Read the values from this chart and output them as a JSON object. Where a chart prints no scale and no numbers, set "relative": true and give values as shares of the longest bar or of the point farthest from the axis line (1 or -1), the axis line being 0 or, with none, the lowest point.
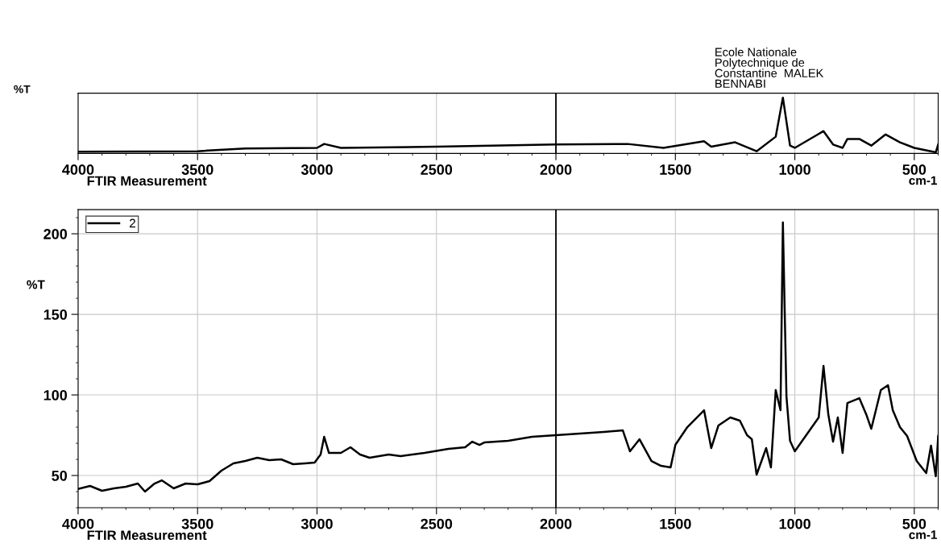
{
  "chart_data": [
    {
      "type": "line",
      "title": "Ecole Nationale\nPolytechnique de\nConstantine  MALEK\nBENNABI",
      "ylabel": "%T",
      "xlabel": "FTIR Measurement",
      "annotations": [
        "cm-1"
      ],
      "relative": true,
      "tick_labels": "x",
      "grid": "x",
      "xlim": [
        4000,
        400
      ],
      "xticks": [
        4000,
        3500,
        3000,
        2500,
        2000,
        1500,
        1000,
        500
      ],
      "ref_lines": [
        {
          "axis": "x",
          "value": 2000,
          "color": "#000000"
        }
      ],
      "series": [
        {
          "color": "#000000",
          "x": [
            4000,
            3500,
            3300,
            3000,
            2970,
            2900,
            2500,
            2000,
            1700,
            1550,
            1380,
            1350,
            1250,
            1160,
            1080,
            1050,
            1020,
            1000,
            880,
            840,
            800,
            780,
            730,
            680,
            620,
            560,
            500,
            410,
            400
          ],
          "values": [
            0.03,
            0.04,
            0.09,
            0.1,
            0.17,
            0.1,
            0.12,
            0.16,
            0.17,
            0.1,
            0.22,
            0.12,
            0.2,
            0.04,
            0.3,
            1,
            0.14,
            0.1,
            0.4,
            0.16,
            0.1,
            0.26,
            0.26,
            0.14,
            0.34,
            0.2,
            0.1,
            0.02,
            0.16
          ]
        }
      ]
    },
    {
      "type": "line",
      "ylabel": "%T",
      "xlabel": "FTIR Measurement",
      "annotations": [
        "cm-1"
      ],
      "grid": true,
      "legend": "top left",
      "xlim": [
        4000,
        400
      ],
      "xticks": [
        4000,
        3500,
        3000,
        2500,
        2000,
        1500,
        1000,
        500
      ],
      "ylim": [
        30,
        215
      ],
      "yticks": [
        50,
        100,
        150,
        200
      ],
      "ref_lines": [
        {
          "axis": "x",
          "value": 2000,
          "color": "#000000"
        }
      ],
      "series": [
        {
          "name": "2",
          "color": "#000000",
          "x": [
            4000,
            3950,
            3900,
            3850,
            3800,
            3750,
            3720,
            3680,
            3650,
            3600,
            3550,
            3500,
            3450,
            3400,
            3350,
            3300,
            3250,
            3200,
            3150,
            3100,
            3050,
            3010,
            2985,
            2970,
            2950,
            2900,
            2860,
            2820,
            2780,
            2700,
            2650,
            2550,
            2450,
            2380,
            2350,
            2320,
            2300,
            2200,
            2100,
            2000,
            1900,
            1800,
            1720,
            1690,
            1650,
            1600,
            1560,
            1520,
            1500,
            1450,
            1380,
            1350,
            1320,
            1270,
            1230,
            1200,
            1180,
            1160,
            1120,
            1100,
            1080,
            1060,
            1050,
            1035,
            1020,
            1000,
            950,
            900,
            880,
            860,
            840,
            820,
            800,
            780,
            730,
            700,
            680,
            640,
            610,
            590,
            560,
            530,
            490,
            450,
            430,
            410,
            400
          ],
          "values": [
            41.6,
            43.5,
            40.5,
            42,
            43,
            45,
            40,
            45,
            47,
            42,
            45,
            44.5,
            46.5,
            53,
            57.5,
            59,
            61,
            59.5,
            60,
            57,
            57.5,
            58,
            63,
            74,
            64,
            64,
            67.5,
            63,
            61,
            63,
            62,
            64,
            66.5,
            67.5,
            71,
            69,
            70.5,
            71.5,
            74,
            75,
            76,
            77,
            78,
            65,
            72.5,
            59,
            56,
            55,
            69,
            80,
            90.5,
            67,
            81,
            86,
            84,
            75,
            72.5,
            50.5,
            67,
            55,
            103,
            90.5,
            207,
            99,
            71.5,
            65,
            75.5,
            86,
            118,
            88,
            71,
            86,
            64,
            95,
            98,
            87.5,
            79,
            103,
            106,
            90.5,
            80,
            74.5,
            59,
            51.5,
            68.5,
            49.5,
            74.5
          ]
        }
      ]
    }
  ]
}
